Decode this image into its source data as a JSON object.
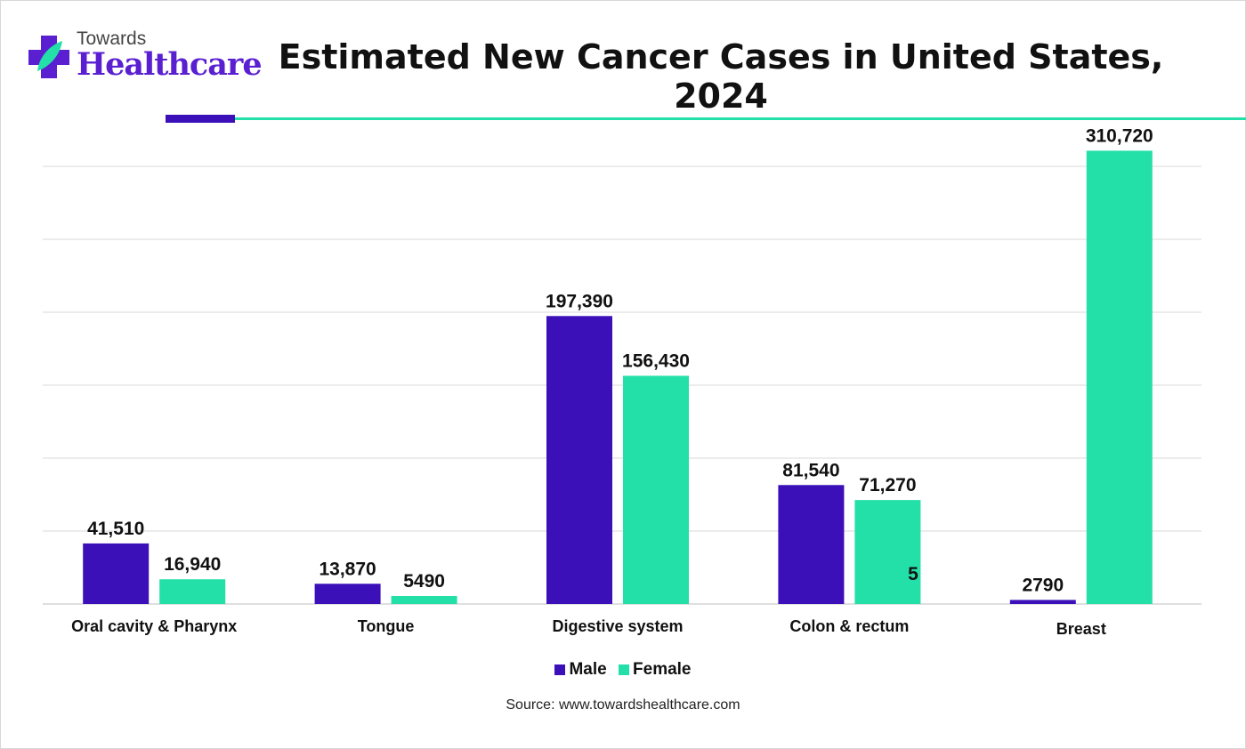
{
  "logo": {
    "line1": "Towards",
    "line2": "Healthcare"
  },
  "colors": {
    "male": "#3b10b8",
    "female": "#23e0a8",
    "grid": "#d9d9d9"
  },
  "chart_data": {
    "type": "bar",
    "title": "Estimated New Cancer Cases in United States, 2024",
    "categories": [
      "Oral cavity & Pharynx",
      "Tongue",
      "Digestive system",
      "Colon & rectum",
      "Breast"
    ],
    "series": [
      {
        "name": "Male",
        "values": [
          41510,
          13870,
          197390,
          81540,
          2790
        ],
        "labels": [
          "41,510",
          "13,870",
          "197,390",
          "81,540",
          "2790"
        ]
      },
      {
        "name": "Female",
        "values": [
          16940,
          5490,
          156430,
          71270,
          310720
        ],
        "labels": [
          "16,940",
          "5490",
          "156,430",
          "71,270",
          "310,720"
        ]
      }
    ],
    "annotations": [
      "5"
    ],
    "ylim": [
      0,
      300000
    ],
    "grid": true,
    "legend": "bottom",
    "xlabel": "",
    "ylabel": ""
  },
  "source": "Source: www.towardshealthcare.com"
}
